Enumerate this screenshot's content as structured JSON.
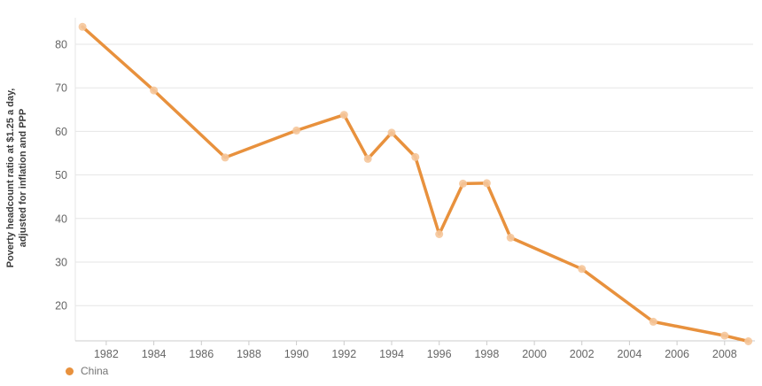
{
  "chart_data": {
    "type": "line",
    "title": "",
    "xlabel": "",
    "ylabel": "Poverty headcount ratio at $1.25 a day,\nadjusted for inflation and PPP",
    "x": [
      1981,
      1984,
      1987,
      1990,
      1992,
      1993,
      1994,
      1995,
      1996,
      1997,
      1998,
      1999,
      2002,
      2005,
      2008,
      2009
    ],
    "series": [
      {
        "name": "China",
        "values": [
          84.0,
          69.4,
          54.0,
          60.2,
          63.8,
          53.7,
          59.7,
          54.1,
          36.4,
          48.0,
          48.1,
          35.6,
          28.4,
          16.3,
          13.1,
          11.8
        ],
        "line_color": "#e8913d",
        "marker_color": "#f5c79b"
      }
    ],
    "x_ticks": [
      "1982",
      "1984",
      "1986",
      "1988",
      "1990",
      "1992",
      "1994",
      "1996",
      "1998",
      "2000",
      "2002",
      "2004",
      "2006",
      "2008"
    ],
    "y_ticks": [
      "80",
      "70",
      "60",
      "50",
      "40",
      "30",
      "20"
    ],
    "xlim": [
      1980.7,
      2009.2
    ],
    "ylim": [
      11.9,
      86.1
    ],
    "grid": "horizontal",
    "legend_position": "bottom-left",
    "legend": [
      {
        "label": "China",
        "color": "#e8913d"
      }
    ]
  },
  "colors": {
    "grid": "#e6e6e6",
    "axis": "#cccccc",
    "tick_text": "#666666",
    "axis_title": "#3d3d3d",
    "background": "#ffffff"
  }
}
